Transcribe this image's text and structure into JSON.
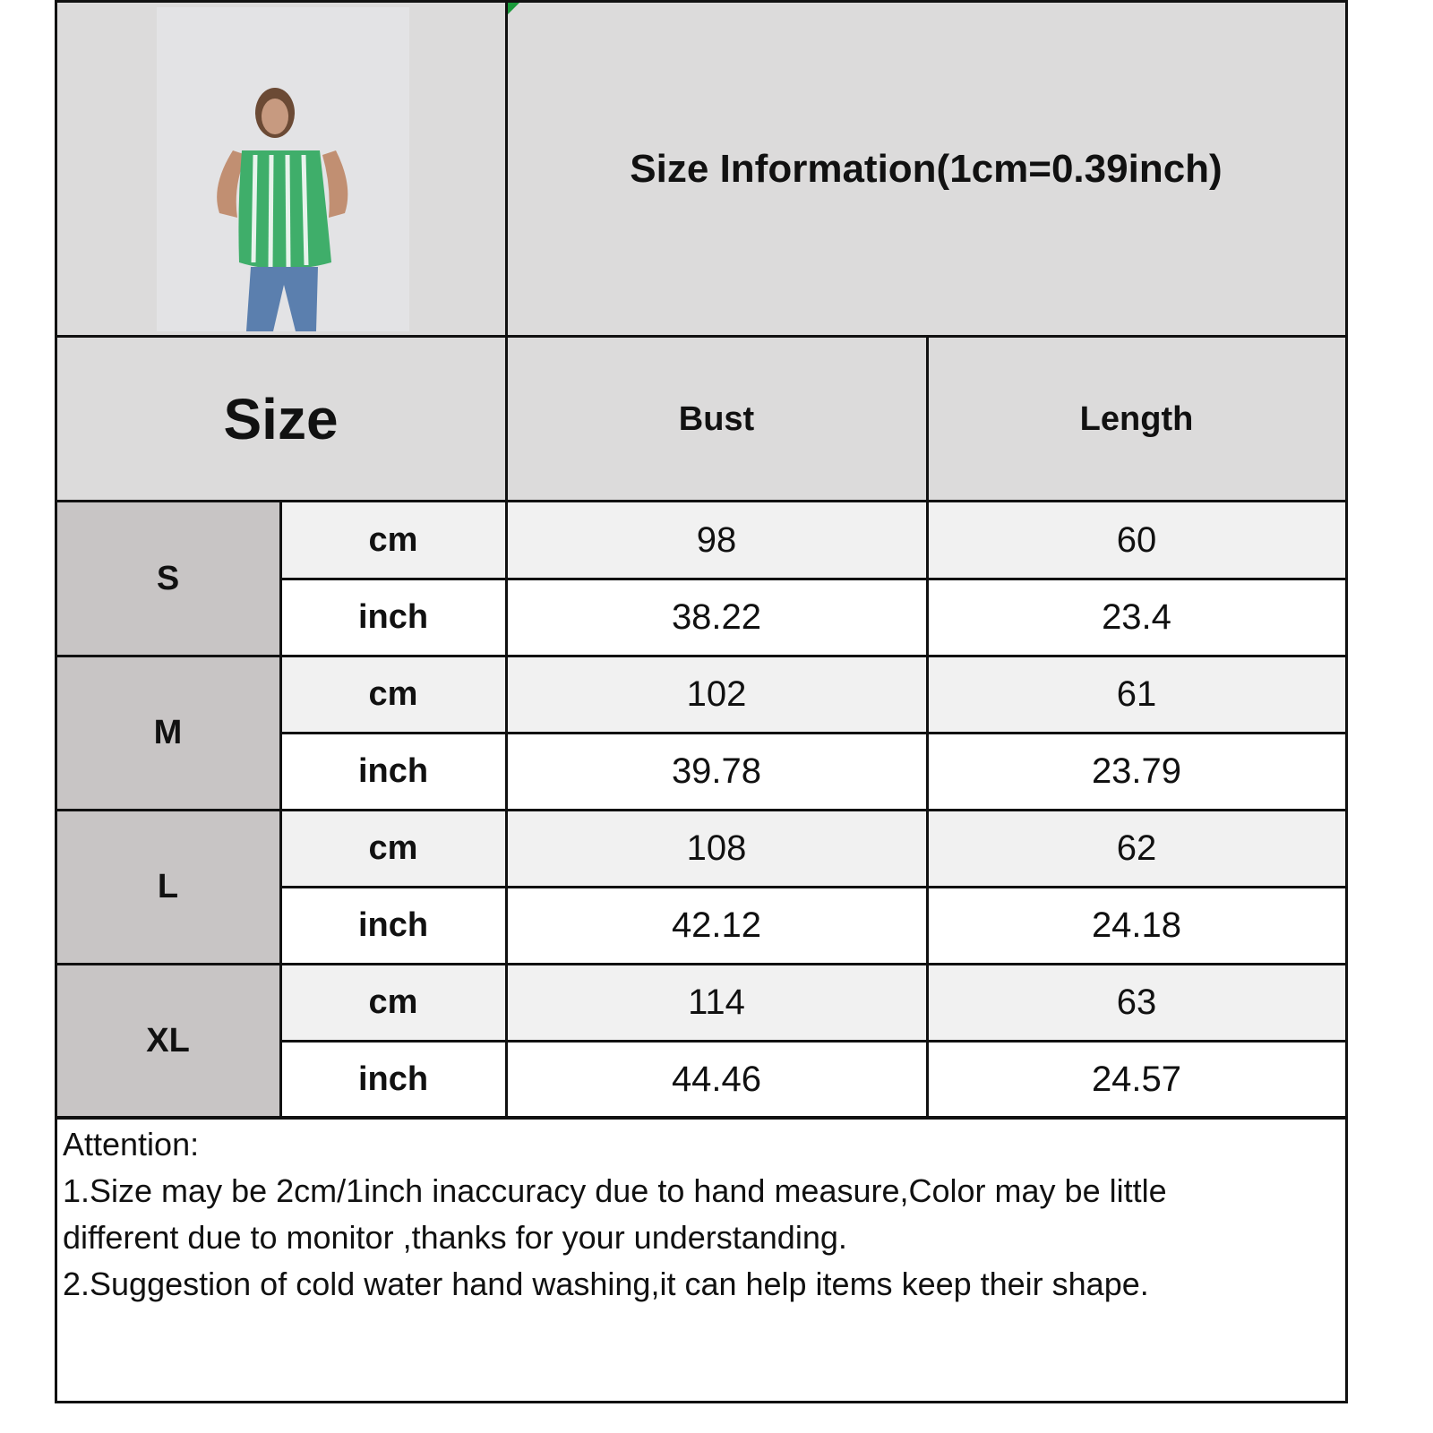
{
  "title": "Size Information(1cm=0.39inch)",
  "header": {
    "size": "Size",
    "columns": [
      "Bust",
      "Length"
    ]
  },
  "colors": {
    "header_bg": "#dcdbdb",
    "size_bg": "#c8c5c5",
    "cm_row_bg": "#f1f1f1",
    "inch_row_bg": "#ffffff",
    "garment": "#3fae6a"
  },
  "rows": [
    {
      "size": "S",
      "cm_label": "cm",
      "inch_label": "inch",
      "bust_cm": "98",
      "length_cm": "60",
      "bust_inch": "38.22",
      "length_inch": "23.4"
    },
    {
      "size": "M",
      "cm_label": "cm",
      "inch_label": "inch",
      "bust_cm": "102",
      "length_cm": "61",
      "bust_inch": "39.78",
      "length_inch": "23.79"
    },
    {
      "size": "L",
      "cm_label": "cm",
      "inch_label": "inch",
      "bust_cm": "108",
      "length_cm": "62",
      "bust_inch": "42.12",
      "length_inch": "24.18"
    },
    {
      "size": "XL",
      "cm_label": "cm",
      "inch_label": "inch",
      "bust_cm": "114",
      "length_cm": "63",
      "bust_inch": "44.46",
      "length_inch": "24.57"
    }
  ],
  "notes": [
    "Attention:",
    "1.Size may be 2cm/1inch inaccuracy due to hand measure,Color may be little",
    "different due to monitor ,thanks for your understanding.",
    "2.Suggestion of cold water hand washing,it can help items keep their shape."
  ]
}
